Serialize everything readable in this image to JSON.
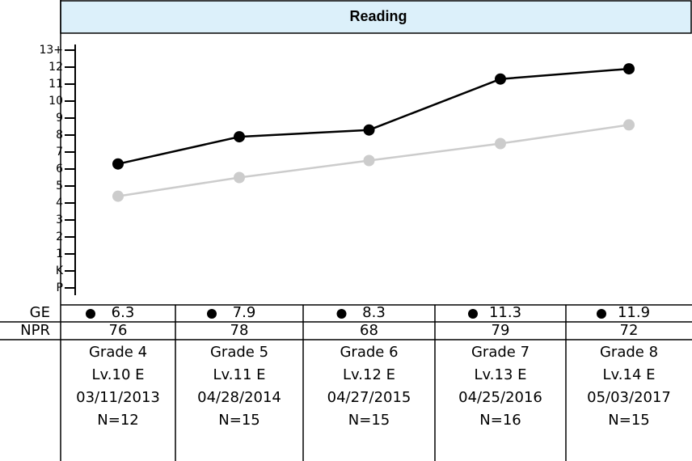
{
  "chart_data": {
    "type": "line",
    "title": "Reading",
    "categories": [
      "Grade 4",
      "Grade 5",
      "Grade 6",
      "Grade 7",
      "Grade 8"
    ],
    "levels": [
      "Lv.10 E",
      "Lv.11 E",
      "Lv.12 E",
      "Lv.13 E",
      "Lv.14 E"
    ],
    "dates": [
      "03/11/2013",
      "04/28/2014",
      "04/27/2015",
      "04/25/2016",
      "05/03/2017"
    ],
    "n": [
      "N=12",
      "N=15",
      "N=15",
      "N=16",
      "N=15"
    ],
    "series": [
      {
        "name": "GE",
        "color": "#000000",
        "values": [
          6.3,
          7.9,
          8.3,
          11.3,
          11.9
        ]
      },
      {
        "color": "#cccccc",
        "values": [
          4.4,
          5.5,
          6.5,
          7.5,
          8.6
        ]
      }
    ],
    "npr": {
      "label": "NPR",
      "values": [
        76,
        78,
        68,
        79,
        72
      ]
    },
    "ylim": [
      -2,
      14
    ],
    "yticks": [
      {
        "value": -1,
        "label": "P"
      },
      {
        "value": 0,
        "label": "K"
      },
      1,
      2,
      3,
      4,
      5,
      6,
      7,
      8,
      9,
      10,
      11,
      12,
      {
        "value": 13,
        "label": "13+"
      }
    ]
  }
}
